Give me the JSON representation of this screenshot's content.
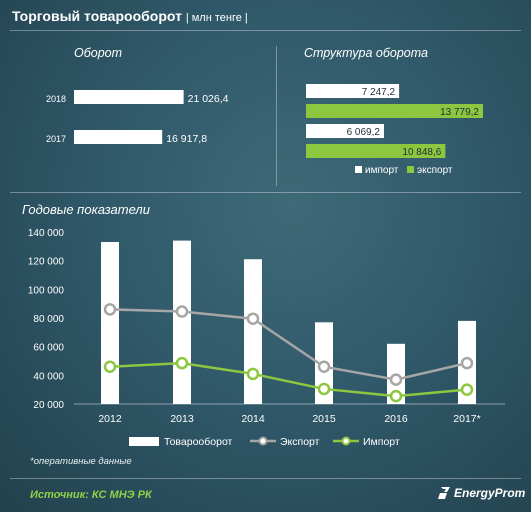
{
  "header": {
    "title": "Торговый товарооборот",
    "unit": "| млн тенге |"
  },
  "turnover_section": {
    "title": "Оборот"
  },
  "structure_section": {
    "title": "Структура оборота"
  },
  "annual_section": {
    "title": "Годовые показатели"
  },
  "footnote": "*оперативные данные",
  "source": "Источник: КС МНЭ РК",
  "logo": "EnergyProm",
  "colors": {
    "white_bar": "#ffffff",
    "export_green": "#8dc63f",
    "export_line": "#a6a6a6",
    "import_line": "#8dc63f"
  },
  "chart_data": [
    {
      "type": "bar",
      "orientation": "horizontal",
      "title": "Оборот",
      "categories": [
        "2018",
        "2017"
      ],
      "values": [
        21026.4,
        16917.8
      ],
      "value_labels": [
        "21 026,4",
        "16 917,8"
      ]
    },
    {
      "type": "bar",
      "orientation": "horizontal",
      "title": "Структура оборота",
      "categories": [
        "2018",
        "2017"
      ],
      "series": [
        {
          "name": "импорт",
          "values": [
            7247.2,
            6069.2
          ],
          "value_labels": [
            "7 247,2",
            "6 069,2"
          ]
        },
        {
          "name": "экспорт",
          "values": [
            13779.2,
            10848.6
          ],
          "value_labels": [
            "13 779,2",
            "10 848,6"
          ]
        }
      ],
      "legend": "bottom"
    },
    {
      "type": "bar",
      "title": "Годовые показатели",
      "categories": [
        "2012",
        "2013",
        "2014",
        "2015",
        "2016",
        "2017*"
      ],
      "ylim": [
        20000,
        140000
      ],
      "yticks": [
        "20 000",
        "40 000",
        "60 000",
        "80 000",
        "100 000",
        "120 000",
        "140 000"
      ],
      "ytick_values": [
        20000,
        40000,
        60000,
        80000,
        100000,
        120000,
        140000
      ],
      "grid": false,
      "legend": "bottom",
      "series": [
        {
          "name": "Товарооборот",
          "kind": "bar",
          "values": [
            133000,
            134000,
            121000,
            77000,
            62000,
            78000
          ]
        },
        {
          "name": "Экспорт",
          "kind": "line",
          "values": [
            86000,
            84500,
            79500,
            46000,
            37000,
            48500
          ]
        },
        {
          "name": "Импорт",
          "kind": "line",
          "values": [
            46000,
            48500,
            41000,
            30500,
            25500,
            30000
          ]
        }
      ]
    }
  ]
}
